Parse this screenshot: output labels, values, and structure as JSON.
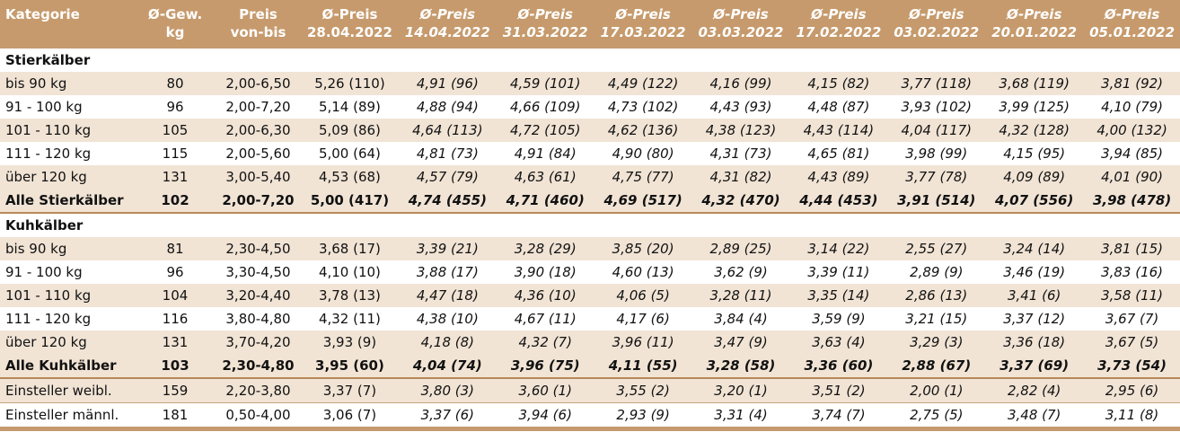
{
  "header": [
    "Kategorie",
    "Ø-Gew.\nkg",
    "Preis\nvon-bis",
    "Ø-Preis\n28.04.2022",
    "Ø-Preis\n14.04.2022",
    "Ø-Preis\n31.03.2022",
    "Ø-Preis\n17.03.2022",
    "Ø-Preis\n03.03.2022",
    "Ø-Preis\n17.02.2022",
    "Ø-Preis\n03.02.2022",
    "Ø-Preis\n20.01.2022",
    "Ø-Preis\n05.01.2022"
  ],
  "sections": [
    {
      "title": "Stierkälber",
      "rows": [
        [
          "bis 90 kg",
          "80",
          "2,00-6,50",
          "5,26 (110)",
          "4,91 (96)",
          "4,59 (101)",
          "4,49 (122)",
          "4,16 (99)",
          "4,15 (82)",
          "3,77 (118)",
          "3,68 (119)",
          "3,81 (92)"
        ],
        [
          "91 - 100 kg",
          "96",
          "2,00-7,20",
          "5,14 (89)",
          "4,88 (94)",
          "4,66 (109)",
          "4,73 (102)",
          "4,43 (93)",
          "4,48 (87)",
          "3,93 (102)",
          "3,99 (125)",
          "4,10 (79)"
        ],
        [
          "101 - 110 kg",
          "105",
          "2,00-6,30",
          "5,09 (86)",
          "4,64 (113)",
          "4,72 (105)",
          "4,62 (136)",
          "4,38 (123)",
          "4,43 (114)",
          "4,04 (117)",
          "4,32 (128)",
          "4,00 (132)"
        ],
        [
          "111 - 120 kg",
          "115",
          "2,00-5,60",
          "5,00 (64)",
          "4,81 (73)",
          "4,91 (84)",
          "4,90 (80)",
          "4,31 (73)",
          "4,65 (81)",
          "3,98 (99)",
          "4,15 (95)",
          "3,94 (85)"
        ],
        [
          "über 120 kg",
          "131",
          "3,00-5,40",
          "4,53 (68)",
          "4,57 (79)",
          "4,63 (61)",
          "4,75 (77)",
          "4,31 (82)",
          "4,43 (89)",
          "3,77 (78)",
          "4,09 (89)",
          "4,01 (90)"
        ]
      ],
      "total": [
        "Alle Stierkälber",
        "102",
        "2,00-7,20",
        "5,00 (417)",
        "4,74 (455)",
        "4,71 (460)",
        "4,69 (517)",
        "4,32 (470)",
        "4,44 (453)",
        "3,91 (514)",
        "4,07 (556)",
        "3,98 (478)"
      ]
    },
    {
      "title": "Kuhkälber",
      "rows": [
        [
          "bis 90 kg",
          "81",
          "2,30-4,50",
          "3,68 (17)",
          "3,39 (21)",
          "3,28 (29)",
          "3,85 (20)",
          "2,89 (25)",
          "3,14 (22)",
          "2,55 (27)",
          "3,24 (14)",
          "3,81 (15)"
        ],
        [
          "91 - 100 kg",
          "96",
          "3,30-4,50",
          "4,10 (10)",
          "3,88 (17)",
          "3,90 (18)",
          "4,60  (13)",
          "3,62 (9)",
          "3,39 (11)",
          "2,89 (9)",
          "3,46 (19)",
          "3,83 (16)"
        ],
        [
          "101 - 110 kg",
          "104",
          "3,20-4,40",
          "3,78 (13)",
          "4,47 (18)",
          "4,36 (10)",
          "4,06 (5)",
          "3,28 (11)",
          "3,35 (14)",
          "2,86 (13)",
          "3,41 (6)",
          "3,58 (11)"
        ],
        [
          "111 - 120 kg",
          "116",
          "3,80-4,80",
          "4,32 (11)",
          "4,38 (10)",
          "4,67 (11)",
          "4,17 (6)",
          "3,84 (4)",
          "3,59 (9)",
          "3,21 (15)",
          "3,37 (12)",
          "3,67 (7)"
        ],
        [
          "über 120 kg",
          "131",
          "3,70-4,20",
          "3,93 (9)",
          "4,18 (8)",
          "4,32 (7)",
          "3,96 (11)",
          "3,47 (9)",
          "3,63 (4)",
          "3,29 (3)",
          "3,36 (18)",
          "3,67 (5)"
        ]
      ],
      "total": [
        "Alle Kuhkälber",
        "103",
        "2,30-4,80",
        "3,95 (60)",
        "4,04 (74)",
        "3,96 (75)",
        "4,11 (55)",
        "3,28 (58)",
        "3,36 (60)",
        "2,88 (67)",
        "3,37 (69)",
        "3,73 (54)"
      ]
    }
  ],
  "extra_rows": [
    [
      "Einsteller weibl.",
      "159",
      "2,20-3,80",
      "3,37 (7)",
      "3,80 (3)",
      "3,60 (1)",
      "3,55 (2)",
      "3,20 (1)",
      "3,51 (2)",
      "2,00 (1)",
      "2,82 (4)",
      "2,95 (6)"
    ],
    [
      "Einsteller männl.",
      "181",
      "0,50-4,00",
      "3,06 (7)",
      "3,37 (6)",
      "3,94 (6)",
      "2,93 (9)",
      "3,31 (4)",
      "3,74 (7)",
      "2,75 (5)",
      "3,48 (7)",
      "3,11 (8)"
    ]
  ],
  "colors": {
    "header_bg": "#c69a6c",
    "stripe": "#f1e4d5",
    "rule": "#b88958"
  }
}
